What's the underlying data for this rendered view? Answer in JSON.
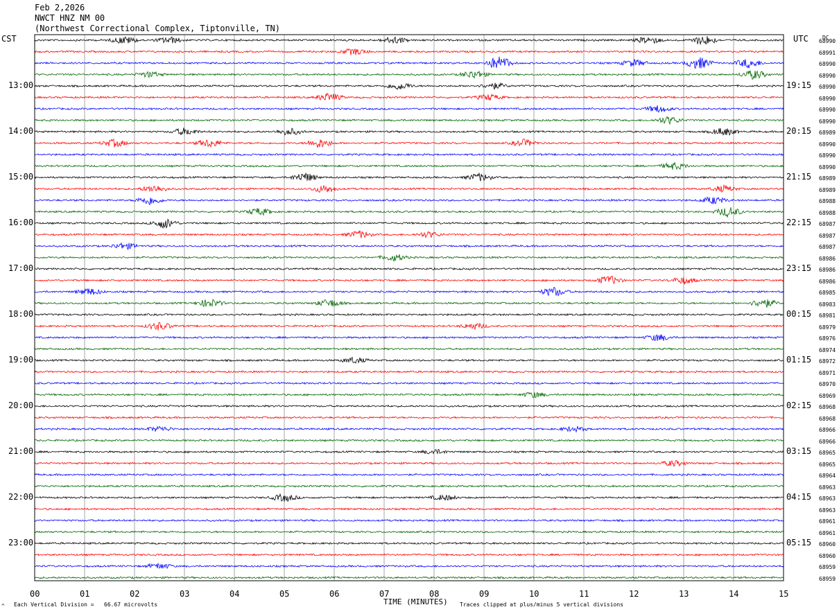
{
  "header": {
    "date": "Feb 2,2026",
    "station": "NWCT HNZ NM 00",
    "location": "(Northwest Correctional Complex, Tiptonville, TN)"
  },
  "left_zone": "CST",
  "right_zone": "UTC",
  "dc_label": "DC",
  "footer": {
    "xlabel": "TIME (MINUTES)",
    "scale_note": "Each Vertical Division =   66.67 microvolts",
    "clip_note": "Traces clipped at plus/minus 5 vertical divisions",
    "corner_mark": "^"
  },
  "colors": {
    "trace_cycle": [
      "#000000",
      "#ff0000",
      "#0000ff",
      "#006400"
    ],
    "grid": "#808080",
    "background": "#ffffff"
  },
  "chart_data": {
    "type": "line",
    "title": "NWCT HNZ NM 00",
    "xlabel": "TIME (MINUTES)",
    "x_ticks": [
      "00",
      "01",
      "02",
      "03",
      "04",
      "05",
      "06",
      "07",
      "08",
      "09",
      "10",
      "11",
      "12",
      "13",
      "14",
      "15"
    ],
    "xlim": [
      0,
      15
    ],
    "trace_count": 48,
    "left_time_labels": [
      "13:00",
      "14:00",
      "15:00",
      "16:00",
      "17:00",
      "18:00",
      "19:00",
      "20:00",
      "21:00",
      "22:00",
      "23:00"
    ],
    "right_time_labels": [
      "19:15",
      "20:15",
      "21:15",
      "22:15",
      "23:15",
      "00:15",
      "01:15",
      "02:15",
      "03:15",
      "04:15",
      "05:15"
    ],
    "dc_offsets": [
      "68990",
      "68991",
      "68990",
      "68990",
      "68990",
      "68990",
      "68990",
      "68990",
      "68989",
      "68990",
      "68990",
      "68990",
      "68989",
      "68989",
      "68988",
      "68988",
      "68987",
      "68987",
      "68987",
      "68986",
      "68986",
      "68986",
      "68985",
      "68983",
      "68981",
      "68979",
      "68976",
      "68974",
      "68972",
      "68971",
      "68970",
      "68969",
      "68968",
      "68968",
      "68966",
      "68966",
      "68965",
      "68965",
      "68964",
      "68963",
      "68963",
      "68963",
      "68961",
      "68961",
      "68960",
      "68960",
      "68959",
      "68959"
    ],
    "events": [
      {
        "trace": 0,
        "minute": 1.8,
        "amp": 1.6
      },
      {
        "trace": 0,
        "minute": 2.7,
        "amp": 1.4
      },
      {
        "trace": 0,
        "minute": 7.2,
        "amp": 1.5
      },
      {
        "trace": 0,
        "minute": 12.3,
        "amp": 1.6
      },
      {
        "trace": 0,
        "minute": 13.4,
        "amp": 2.2
      },
      {
        "trace": 1,
        "minute": 6.4,
        "amp": 1.4
      },
      {
        "trace": 2,
        "minute": 9.3,
        "amp": 3.0
      },
      {
        "trace": 2,
        "minute": 12.0,
        "amp": 1.5
      },
      {
        "trace": 2,
        "minute": 13.3,
        "amp": 2.6
      },
      {
        "trace": 2,
        "minute": 14.3,
        "amp": 2.0
      },
      {
        "trace": 3,
        "minute": 2.3,
        "amp": 1.2
      },
      {
        "trace": 3,
        "minute": 8.8,
        "amp": 1.7
      },
      {
        "trace": 3,
        "minute": 14.4,
        "amp": 2.0
      },
      {
        "trace": 4,
        "minute": 7.3,
        "amp": 1.6
      },
      {
        "trace": 4,
        "minute": 9.2,
        "amp": 1.3
      },
      {
        "trace": 5,
        "minute": 5.9,
        "amp": 1.8
      },
      {
        "trace": 5,
        "minute": 9.1,
        "amp": 1.3
      },
      {
        "trace": 6,
        "minute": 12.5,
        "amp": 1.5
      },
      {
        "trace": 7,
        "minute": 12.7,
        "amp": 1.6
      },
      {
        "trace": 8,
        "minute": 3.0,
        "amp": 1.5
      },
      {
        "trace": 8,
        "minute": 5.1,
        "amp": 1.5
      },
      {
        "trace": 8,
        "minute": 13.8,
        "amp": 1.7
      },
      {
        "trace": 9,
        "minute": 1.6,
        "amp": 1.6
      },
      {
        "trace": 9,
        "minute": 3.5,
        "amp": 1.8
      },
      {
        "trace": 9,
        "minute": 5.7,
        "amp": 2.0
      },
      {
        "trace": 9,
        "minute": 9.8,
        "amp": 1.5
      },
      {
        "trace": 11,
        "minute": 12.8,
        "amp": 1.5
      },
      {
        "trace": 12,
        "minute": 5.4,
        "amp": 2.0
      },
      {
        "trace": 12,
        "minute": 8.9,
        "amp": 1.7
      },
      {
        "trace": 13,
        "minute": 2.4,
        "amp": 1.6
      },
      {
        "trace": 13,
        "minute": 5.8,
        "amp": 1.7
      },
      {
        "trace": 13,
        "minute": 13.8,
        "amp": 1.4
      },
      {
        "trace": 14,
        "minute": 2.3,
        "amp": 1.9
      },
      {
        "trace": 14,
        "minute": 13.6,
        "amp": 1.6
      },
      {
        "trace": 15,
        "minute": 4.5,
        "amp": 1.5
      },
      {
        "trace": 15,
        "minute": 13.9,
        "amp": 2.2
      },
      {
        "trace": 16,
        "minute": 2.6,
        "amp": 2.2
      },
      {
        "trace": 17,
        "minute": 6.5,
        "amp": 1.6
      },
      {
        "trace": 17,
        "minute": 7.9,
        "amp": 1.2
      },
      {
        "trace": 18,
        "minute": 1.8,
        "amp": 1.4
      },
      {
        "trace": 19,
        "minute": 7.2,
        "amp": 1.5
      },
      {
        "trace": 21,
        "minute": 11.5,
        "amp": 1.9
      },
      {
        "trace": 21,
        "minute": 13.0,
        "amp": 1.5
      },
      {
        "trace": 22,
        "minute": 1.1,
        "amp": 1.5
      },
      {
        "trace": 22,
        "minute": 10.4,
        "amp": 2.0
      },
      {
        "trace": 23,
        "minute": 3.5,
        "amp": 1.8
      },
      {
        "trace": 23,
        "minute": 5.9,
        "amp": 1.7
      },
      {
        "trace": 23,
        "minute": 14.6,
        "amp": 2.0
      },
      {
        "trace": 25,
        "minute": 2.5,
        "amp": 1.7
      },
      {
        "trace": 25,
        "minute": 8.8,
        "amp": 1.3
      },
      {
        "trace": 26,
        "minute": 12.5,
        "amp": 1.5
      },
      {
        "trace": 28,
        "minute": 6.4,
        "amp": 1.3
      },
      {
        "trace": 31,
        "minute": 10.0,
        "amp": 1.2
      },
      {
        "trace": 34,
        "minute": 2.5,
        "amp": 1.1
      },
      {
        "trace": 34,
        "minute": 10.8,
        "amp": 1.1
      },
      {
        "trace": 36,
        "minute": 8.0,
        "amp": 1.0
      },
      {
        "trace": 37,
        "minute": 12.8,
        "amp": 1.2
      },
      {
        "trace": 40,
        "minute": 5.0,
        "amp": 1.6
      },
      {
        "trace": 40,
        "minute": 8.2,
        "amp": 1.2
      },
      {
        "trace": 46,
        "minute": 2.5,
        "amp": 1.2
      }
    ]
  }
}
